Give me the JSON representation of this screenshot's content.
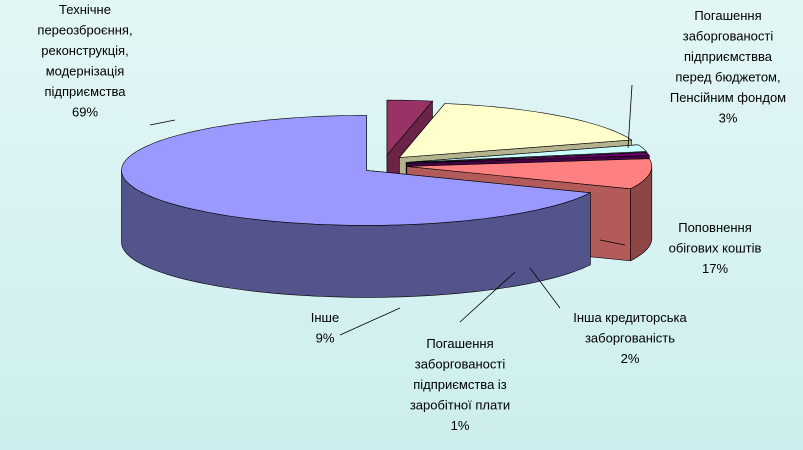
{
  "chart_data": {
    "type": "pie",
    "categories": [
      "Технічне\nпереозброєння,\nреконструкція,\nмодернізація\nпідприємства",
      "Погашення\nзаборгованості\nпідприємствва\nперед бюджетом,\nПенсійним фондом",
      "Поповнення\nобігових коштів",
      "Інша кредиторська\nзаборгованість",
      "Погашення\nзаборгованості\nпідприємства із\nзаробітної плати",
      "Інше"
    ],
    "values": [
      69,
      3,
      17,
      2,
      1,
      9
    ],
    "value_labels": [
      "69%",
      "3%",
      "17%",
      "2%",
      "1%",
      "9%"
    ],
    "colors": [
      "#9999ff",
      "#993366",
      "#ffffcc",
      "#ccffff",
      "#660066",
      "#ff8080"
    ]
  }
}
